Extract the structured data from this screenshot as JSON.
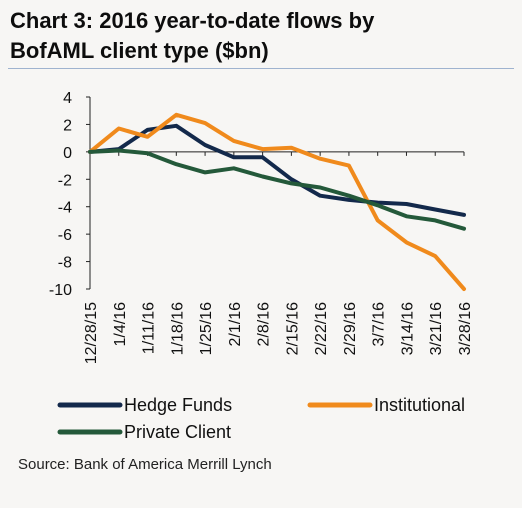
{
  "title_lines": [
    "Chart 3: 2016 year-to-date flows by",
    "BofAML client type ($bn)"
  ],
  "source": "Source: Bank of America Merrill Lynch",
  "chart_data": {
    "type": "line",
    "title": "Chart 3: 2016 year-to-date flows by BofAML client type ($bn)",
    "x": [
      "12/28/15",
      "1/4/16",
      "1/11/16",
      "1/18/16",
      "1/25/16",
      "2/1/16",
      "2/8/16",
      "2/15/16",
      "2/22/16",
      "2/29/16",
      "3/7/16",
      "3/14/16",
      "3/21/16",
      "3/28/16"
    ],
    "yticks": [
      4,
      2,
      0,
      -2,
      -4,
      -6,
      -8,
      -10
    ],
    "ylim": [
      -10,
      4
    ],
    "grid": false,
    "legend_position": "bottom",
    "series": [
      {
        "name": "Hedge Funds",
        "color": "#13294b",
        "values": [
          0.0,
          0.2,
          1.6,
          1.9,
          0.5,
          -0.4,
          -0.4,
          -2.0,
          -3.2,
          -3.5,
          -3.7,
          -3.8,
          -4.2,
          -4.6
        ]
      },
      {
        "name": "Institutional",
        "color": "#f08a1c",
        "values": [
          0.0,
          1.7,
          1.1,
          2.7,
          2.1,
          0.8,
          0.2,
          0.3,
          -0.5,
          -1.0,
          -5.0,
          -6.6,
          -7.6,
          -10.0
        ]
      },
      {
        "name": "Private Client",
        "color": "#24593a",
        "values": [
          0.0,
          0.1,
          -0.1,
          -0.9,
          -1.5,
          -1.2,
          -1.8,
          -2.3,
          -2.6,
          -3.2,
          -3.9,
          -4.7,
          -5.0,
          -5.6
        ]
      }
    ]
  }
}
